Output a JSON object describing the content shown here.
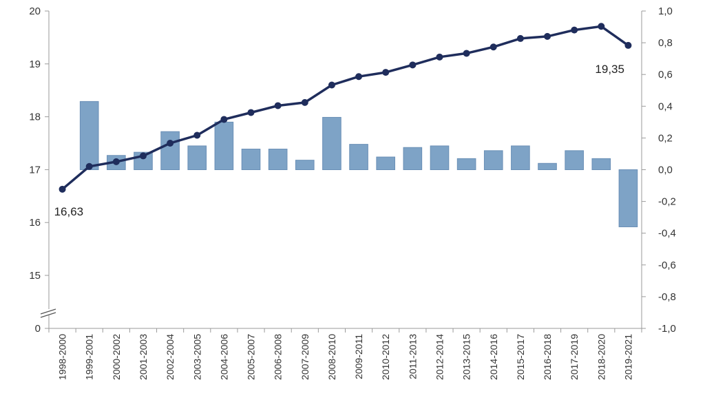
{
  "chart_data": {
    "type": "bar+line",
    "categories": [
      "1998-2000",
      "1999-2001",
      "2000-2002",
      "2001-2003",
      "2002-2004",
      "2003-2005",
      "2004-2006",
      "2005-2007",
      "2006-2008",
      "2007-2009",
      "2008-2010",
      "2009-2011",
      "2010-2012",
      "2011-2013",
      "2012-2014",
      "2013-2015",
      "2014-2016",
      "2015-2017",
      "2016-2018",
      "2017-2019",
      "2018-2020",
      "2019-2021"
    ],
    "left_axis": {
      "ticks": [
        "0",
        "15",
        "16",
        "17",
        "18",
        "19",
        "20"
      ],
      "range": [
        14,
        20
      ],
      "broken": true
    },
    "right_axis": {
      "ticks": [
        "1,0",
        "0,8",
        "0,6",
        "0,4",
        "0,2",
        "0,0",
        "-0,2",
        "-0,4",
        "-0,6",
        "-0,8",
        "-1,0"
      ],
      "range": [
        -1.0,
        1.0
      ]
    },
    "series": [
      {
        "type": "line",
        "axis": "left",
        "color": "#1f2d5c",
        "values": [
          16.63,
          17.06,
          17.15,
          17.26,
          17.5,
          17.65,
          17.95,
          18.08,
          18.21,
          18.27,
          18.6,
          18.76,
          18.84,
          18.98,
          19.13,
          19.2,
          19.32,
          19.48,
          19.52,
          19.64,
          19.71,
          19.35
        ]
      },
      {
        "type": "bar",
        "axis": "right",
        "color": "#7ea3c6",
        "border": "#6a8fb6",
        "values": [
          0.0,
          0.43,
          0.09,
          0.11,
          0.24,
          0.15,
          0.3,
          0.13,
          0.13,
          0.06,
          0.33,
          0.16,
          0.08,
          0.14,
          0.15,
          0.07,
          0.12,
          0.15,
          0.04,
          0.12,
          0.07,
          -0.36
        ]
      }
    ],
    "annotations": [
      {
        "text": "16,63",
        "at": "first"
      },
      {
        "text": "19,35",
        "at": "last"
      }
    ],
    "grid": false,
    "legend": "none"
  }
}
